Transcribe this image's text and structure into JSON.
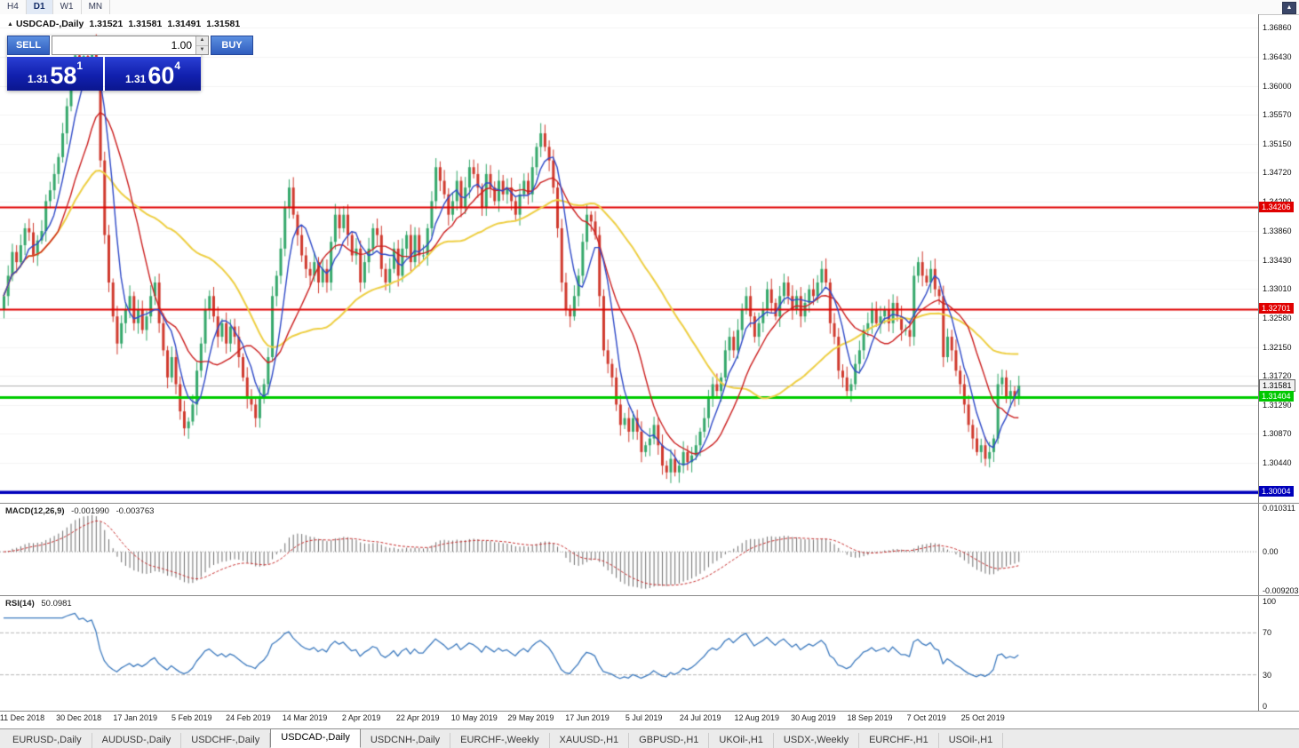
{
  "toolbar": {
    "periods": [
      {
        "label": "H4",
        "active": false
      },
      {
        "label": "D1",
        "active": true
      },
      {
        "label": "W1",
        "active": false
      },
      {
        "label": "MN",
        "active": false
      }
    ]
  },
  "icons": {
    "marker": "▲",
    "spin_up": "▲",
    "spin_down": "▼",
    "scroll_up": "▲"
  },
  "chart_header": {
    "symbol": "USDCAD-,Daily",
    "open": "1.31521",
    "high": "1.31581",
    "low": "1.31491",
    "close": "1.31581"
  },
  "trade_panel": {
    "sell_label": "SELL",
    "buy_label": "BUY",
    "volume": "1.00",
    "sell_price": {
      "prefix": "1.31",
      "big": "58",
      "sup": "1"
    },
    "buy_price": {
      "prefix": "1.31",
      "big": "60",
      "sup": "4"
    }
  },
  "price_axis": {
    "labels": [
      "1.36860",
      "1.36430",
      "1.36000",
      "1.35570",
      "1.35150",
      "1.34720",
      "1.34290",
      "1.33860",
      "1.33430",
      "1.33010",
      "1.32580",
      "1.32150",
      "1.31720",
      "1.31290",
      "1.30870",
      "1.30440"
    ]
  },
  "levels": [
    {
      "label": "1.34206",
      "price": 1.34206,
      "type": "resistance-line",
      "bg": "#e00000",
      "fg": "#ffffff",
      "line": "#e00000",
      "lw": 2
    },
    {
      "label": "1.32701",
      "price": 1.32701,
      "type": "resistance-line",
      "bg": "#e00000",
      "fg": "#ffffff",
      "line": "#e00000",
      "lw": 2
    },
    {
      "label": "1.31581",
      "price": 1.31581,
      "type": "current-bid",
      "bg": "#f2f2f2",
      "fg": "#000000",
      "line": "#b0b0b0",
      "lw": 1
    },
    {
      "label": "1.31404",
      "price": 1.31404,
      "type": "support-line",
      "bg": "#00c800",
      "fg": "#ffffff",
      "line": "#00cc00",
      "lw": 3
    },
    {
      "label": "1.30004",
      "price": 1.30004,
      "type": "support-line",
      "bg": "#0000bb",
      "fg": "#ffffff",
      "line": "#0000bb",
      "lw": 3.5
    }
  ],
  "macd_panel": {
    "title": "MACD(12,26,9)",
    "value1": "-0.001990",
    "value2": "-0.003763",
    "axis": [
      "0.010311",
      "0.00",
      "-0.009203"
    ],
    "range": [
      -0.009203,
      0.010311
    ]
  },
  "rsi_panel": {
    "title": "RSI(14)",
    "value": "50.0981",
    "axis": [
      "100",
      "70",
      "30",
      "0"
    ],
    "levels": [
      70,
      30
    ]
  },
  "date_axis": [
    "11 Dec 2018",
    "30 Dec 2018",
    "17 Jan 2019",
    "5 Feb 2019",
    "24 Feb 2019",
    "14 Mar 2019",
    "2 Apr 2019",
    "22 Apr 2019",
    "10 May 2019",
    "29 May 2019",
    "17 Jun 2019",
    "5 Jul 2019",
    "24 Jul 2019",
    "12 Aug 2019",
    "30 Aug 2019",
    "18 Sep 2019",
    "7 Oct 2019",
    "25 Oct 2019"
  ],
  "tabs": [
    {
      "label": "EURUSD-,Daily",
      "active": false
    },
    {
      "label": "AUDUSD-,Daily",
      "active": false
    },
    {
      "label": "USDCHF-,Daily",
      "active": false
    },
    {
      "label": "USDCAD-,Daily",
      "active": true
    },
    {
      "label": "USDCNH-,Daily",
      "active": false
    },
    {
      "label": "EURCHF-,Weekly",
      "active": false
    },
    {
      "label": "XAUUSD-,H1",
      "active": false
    },
    {
      "label": "GBPUSD-,H1",
      "active": false
    },
    {
      "label": "UKOil-,H1",
      "active": false
    },
    {
      "label": "USDX-,Weekly",
      "active": false
    },
    {
      "label": "EURCHF-,H1",
      "active": false
    },
    {
      "label": "USOil-,H1",
      "active": false
    }
  ],
  "colors": {
    "candle_up": "#35a86b",
    "candle_down": "#d03a2e",
    "ma_fast": "#2f4ac8",
    "ma_mid": "#cc2020",
    "ma_slow": "#eecf44",
    "macd_hist": "#6e6e6e",
    "macd_signal": "#c92f2f",
    "rsi_line": "#3e7bbf",
    "grid": "#f4f4f4"
  },
  "chart_data": {
    "type": "candlestick",
    "symbol": "USDCAD",
    "timeframe": "Daily",
    "price_axis_top": 1.3686,
    "price_axis_bottom": 1.30004,
    "current_bid": 1.31581,
    "horizontal_lines": [
      1.34206,
      1.32701,
      1.31404,
      1.30004
    ],
    "moving_averages": [
      {
        "name": "fast",
        "period": 6,
        "color": "#2f4ac8"
      },
      {
        "name": "mid",
        "period": 14,
        "color": "#cc2020"
      },
      {
        "name": "slow",
        "period": 40,
        "color": "#eecf44"
      }
    ],
    "indicators": [
      {
        "type": "macd",
        "params": [
          12,
          26,
          9
        ],
        "last_values": [
          -0.00199,
          -0.003763
        ],
        "range": [
          -0.009203,
          0.010311
        ]
      },
      {
        "type": "rsi",
        "params": [
          14
        ],
        "last_value": 50.0981,
        "range": [
          0,
          100
        ],
        "levels": [
          30,
          70
        ]
      }
    ],
    "closes": [
      1.329,
      1.332,
      1.3355,
      1.334,
      1.3365,
      1.339,
      1.3384,
      1.335,
      1.3372,
      1.3386,
      1.343,
      1.3446,
      1.347,
      1.3495,
      1.353,
      1.357,
      1.361,
      1.3645,
      1.362,
      1.3644,
      1.363,
      1.366,
      1.361,
      1.349,
      1.338,
      1.331,
      1.326,
      1.322,
      1.325,
      1.327,
      1.329,
      1.325,
      1.327,
      1.324,
      1.326,
      1.329,
      1.331,
      1.325,
      1.321,
      1.317,
      1.32,
      1.316,
      1.312,
      1.3095,
      1.3105,
      1.313,
      1.318,
      1.322,
      1.327,
      1.329,
      1.326,
      1.323,
      1.325,
      1.322,
      1.3245,
      1.323,
      1.32,
      1.317,
      1.314,
      1.313,
      1.311,
      1.314,
      1.316,
      1.32,
      1.329,
      1.332,
      1.336,
      1.342,
      1.345,
      1.341,
      1.338,
      1.335,
      1.333,
      1.332,
      1.334,
      1.331,
      1.333,
      1.331,
      1.337,
      1.341,
      1.339,
      1.341,
      1.338,
      1.335,
      1.336,
      1.331,
      1.334,
      1.336,
      1.339,
      1.338,
      1.333,
      1.331,
      1.333,
      1.336,
      1.332,
      1.336,
      1.338,
      1.334,
      1.338,
      1.335,
      1.335,
      1.339,
      1.343,
      1.348,
      1.346,
      1.344,
      1.341,
      1.343,
      1.346,
      1.342,
      1.345,
      1.348,
      1.347,
      1.345,
      1.342,
      1.347,
      1.345,
      1.343,
      1.346,
      1.344,
      1.345,
      1.343,
      1.341,
      1.344,
      1.346,
      1.344,
      1.348,
      1.351,
      1.353,
      1.351,
      1.349,
      1.345,
      1.339,
      1.331,
      1.327,
      1.326,
      1.329,
      1.332,
      1.337,
      1.341,
      1.34,
      1.338,
      1.329,
      1.321,
      1.319,
      1.317,
      1.313,
      1.31,
      1.311,
      1.309,
      1.311,
      1.309,
      1.306,
      1.307,
      1.308,
      1.31,
      1.307,
      1.304,
      1.303,
      1.305,
      1.303,
      1.304,
      1.306,
      1.3045,
      1.3055,
      1.307,
      1.309,
      1.311,
      1.314,
      1.316,
      1.315,
      1.317,
      1.321,
      1.323,
      1.321,
      1.324,
      1.327,
      1.329,
      1.326,
      1.323,
      1.325,
      1.327,
      1.33,
      1.328,
      1.326,
      1.329,
      1.331,
      1.329,
      1.327,
      1.329,
      1.326,
      1.328,
      1.33,
      1.329,
      1.331,
      1.333,
      1.331,
      1.325,
      1.323,
      1.318,
      1.317,
      1.315,
      1.316,
      1.319,
      1.321,
      1.324,
      1.325,
      1.327,
      1.325,
      1.326,
      1.327,
      1.325,
      1.328,
      1.326,
      1.324,
      1.324,
      1.323,
      1.332,
      1.334,
      1.332,
      1.331,
      1.333,
      1.33,
      1.329,
      1.32,
      1.323,
      1.321,
      1.318,
      1.316,
      1.313,
      1.31,
      1.308,
      1.306,
      1.307,
      1.305,
      1.306,
      1.308,
      1.316,
      1.317,
      1.314,
      1.315,
      1.314,
      1.31581
    ]
  }
}
